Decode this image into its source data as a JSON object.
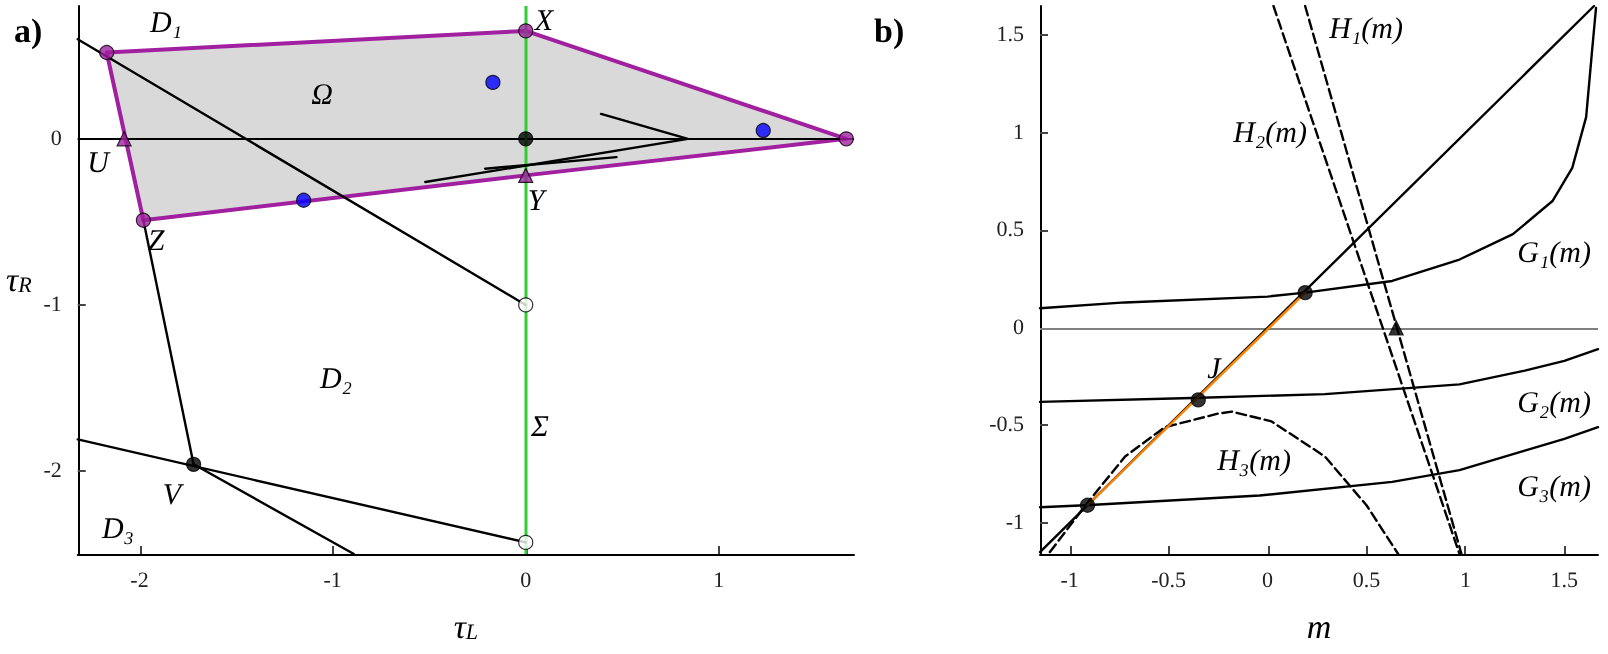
{
  "chart_data": [
    {
      "type": "line",
      "title": "a)",
      "xlabel": "τ$_{L}$",
      "ylabel": "τ$_{R}$",
      "xlim": [
        -2.32,
        1.7
      ],
      "ylim": [
        -2.5,
        0.8
      ],
      "xticks": [
        -2,
        -1,
        0,
        1
      ],
      "yticks": [
        -2,
        -1,
        0
      ],
      "grid": false,
      "ref_lines": [
        {
          "axis": "y",
          "value": 0,
          "color": "#000000"
        },
        {
          "axis": "x",
          "value": 0,
          "color": "#33cc33"
        }
      ],
      "series": [
        {
          "type": "area",
          "color": "#a020a0",
          "x": [
            -2.17,
            0,
            1.66,
            0,
            -1.98,
            -2.17
          ],
          "values": [
            0.52,
            0.65,
            0,
            -0.22,
            -0.49,
            0.52
          ]
        },
        {
          "color": "#000000",
          "x": [
            -2.32,
            0
          ],
          "values": [
            0.6,
            -1.0
          ]
        },
        {
          "color": "#000000",
          "x": [
            -1.98,
            -1.72,
            -0.89
          ],
          "values": [
            -0.49,
            -1.96,
            -2.5
          ]
        },
        {
          "color": "#000000",
          "x": [
            -2.32,
            0
          ],
          "values": [
            -1.81,
            -2.43
          ]
        },
        {
          "color": "#000000",
          "x": [
            0.39,
            0.84,
            -0.52
          ],
          "values": [
            0.15,
            0,
            -0.26
          ]
        },
        {
          "color": "#000000",
          "x": [
            -0.21,
            0.47
          ],
          "values": [
            -0.18,
            -0.11
          ]
        },
        {
          "type": "scatter",
          "color": "#0000ff",
          "marker": "circle",
          "x": [
            -0.17,
            1.23,
            -1.15
          ],
          "values": [
            0.34,
            0.05,
            -0.37
          ]
        },
        {
          "type": "scatter",
          "color": "#000000",
          "marker": "circle",
          "x": [
            0,
            -1.72
          ],
          "values": [
            0,
            -1.96
          ]
        },
        {
          "type": "scatter",
          "color": "#ffffff",
          "marker": "circle",
          "x": [
            0,
            0
          ],
          "values": [
            -1.0,
            -2.43
          ]
        },
        {
          "type": "scatter",
          "color": "#a020a0",
          "marker": "circle",
          "x": [
            -2.17,
            0,
            1.66,
            -1.98
          ],
          "values": [
            0.52,
            0.65,
            0,
            -0.49
          ]
        },
        {
          "type": "scatter",
          "color": "#a020a0",
          "marker": "triangle",
          "x": [
            -2.08,
            0
          ],
          "values": [
            0,
            -0.22
          ]
        }
      ],
      "annotations": [
        "D₁",
        "Ω",
        "D₂",
        "Σ",
        "D₃",
        "X",
        "U",
        "Y",
        "Z",
        "V"
      ]
    },
    {
      "type": "line",
      "title": "b)",
      "xlabel": "m",
      "xlim": [
        -1.15,
        1.67
      ],
      "ylim": [
        -1.16,
        1.65
      ],
      "xticks": [
        -1,
        -0.5,
        0,
        0.5,
        1,
        1.5
      ],
      "yticks": [
        -1,
        -0.5,
        0,
        0.5,
        1,
        1.5
      ],
      "grid": false,
      "ref_lines": [
        {
          "axis": "y",
          "value": 0,
          "color": "#808080"
        }
      ],
      "series": [
        {
          "color": "#000000",
          "x": [
            -1.15,
            -0.72,
            0,
            0.19,
            0.63,
            0.97,
            1.24,
            1.44,
            1.54,
            1.61,
            1.64,
            1.66
          ],
          "values": [
            0.1,
            0.13,
            0.16,
            0.18,
            0.24,
            0.35,
            0.48,
            0.65,
            0.82,
            1.08,
            1.42,
            1.64
          ]
        },
        {
          "color": "#000000",
          "x": [
            -1.15,
            -0.38,
            0.29,
            0.97,
            1.3,
            1.5,
            1.67
          ],
          "values": [
            -0.38,
            -0.36,
            -0.34,
            -0.29,
            -0.22,
            -0.17,
            -0.11
          ]
        },
        {
          "color": "#000000",
          "x": [
            -1.15,
            -0.92,
            -0.04,
            0.63,
            0.97,
            1.3,
            1.5,
            1.67
          ],
          "values": [
            -0.92,
            -0.91,
            -0.86,
            -0.79,
            -0.73,
            -0.63,
            -0.57,
            -0.51
          ]
        },
        {
          "color": "#000000",
          "line_style": "dashed",
          "x": [
            0.19,
            0.98
          ],
          "values": [
            1.65,
            -1.16
          ]
        },
        {
          "color": "#000000",
          "line_style": "dashed",
          "x": [
            0.03,
            0.97
          ],
          "values": [
            1.65,
            -1.16
          ]
        },
        {
          "color": "#000000",
          "line_style": "dashed",
          "x": [
            -1.1,
            -0.92,
            -0.72,
            -0.52,
            -0.25,
            -0.18,
            0.02,
            0.29,
            0.5,
            0.66
          ],
          "values": [
            -1.15,
            -0.91,
            -0.66,
            -0.51,
            -0.44,
            -0.43,
            -0.48,
            -0.66,
            -0.91,
            -1.16
          ]
        },
        {
          "color": "#000000",
          "x": [
            -1.15,
            1.65
          ],
          "values": [
            -1.15,
            1.65
          ]
        },
        {
          "color": "#ff8000",
          "x": [
            -0.91,
            0.19
          ],
          "values": [
            -0.91,
            0.18
          ]
        },
        {
          "type": "scatter",
          "color": "#000000",
          "marker": "circle",
          "x": [
            0.19,
            -0.35,
            -0.91
          ],
          "values": [
            0.18,
            -0.37,
            -0.91
          ]
        },
        {
          "type": "scatter",
          "color": "#000000",
          "marker": "triangle",
          "x": [
            0.65
          ],
          "values": [
            0
          ]
        }
      ],
      "annotations": [
        "H₁(m)",
        "H₂(m)",
        "G₁(m)",
        "G₂(m)",
        "G₃(m)",
        "H₃(m)",
        "J"
      ]
    }
  ]
}
